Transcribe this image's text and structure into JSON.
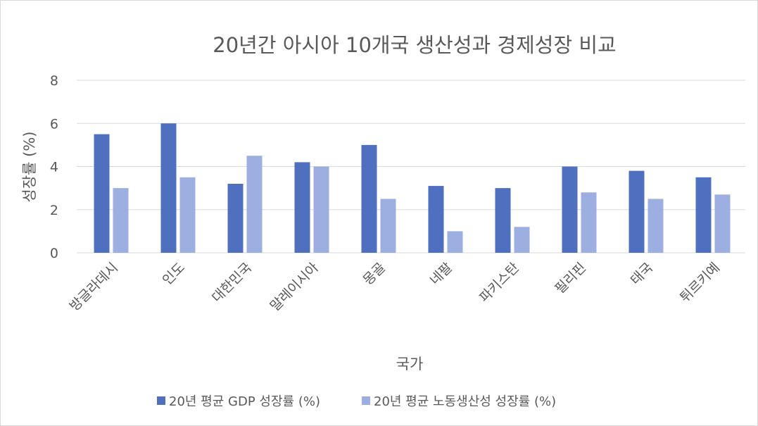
{
  "chart_data": {
    "type": "bar",
    "title": "20년간 아시아 10개국 생산성과 경제성장 비교",
    "xlabel": "국가",
    "ylabel": "성장률 (%)",
    "ylim": [
      0,
      8
    ],
    "yticks": [
      0,
      2,
      4,
      6,
      8
    ],
    "grid": true,
    "legend_position": "bottom",
    "categories": [
      "방글라데시",
      "인도",
      "대한민국",
      "말레이시아",
      "몽골",
      "네팔",
      "파키스탄",
      "필리핀",
      "태국",
      "튀르키예"
    ],
    "series": [
      {
        "name": "20년 평균 GDP 성장률 (%)",
        "color": "#4f6fbf",
        "values": [
          5.5,
          6.0,
          3.2,
          4.2,
          5.0,
          3.1,
          3.0,
          4.0,
          3.8,
          3.5
        ]
      },
      {
        "name": "20년 평균 노동생산성 성장률 (%)",
        "color": "#9daee0",
        "values": [
          3.0,
          3.5,
          4.5,
          4.0,
          2.5,
          1.0,
          1.2,
          2.8,
          2.5,
          2.7
        ]
      }
    ]
  }
}
